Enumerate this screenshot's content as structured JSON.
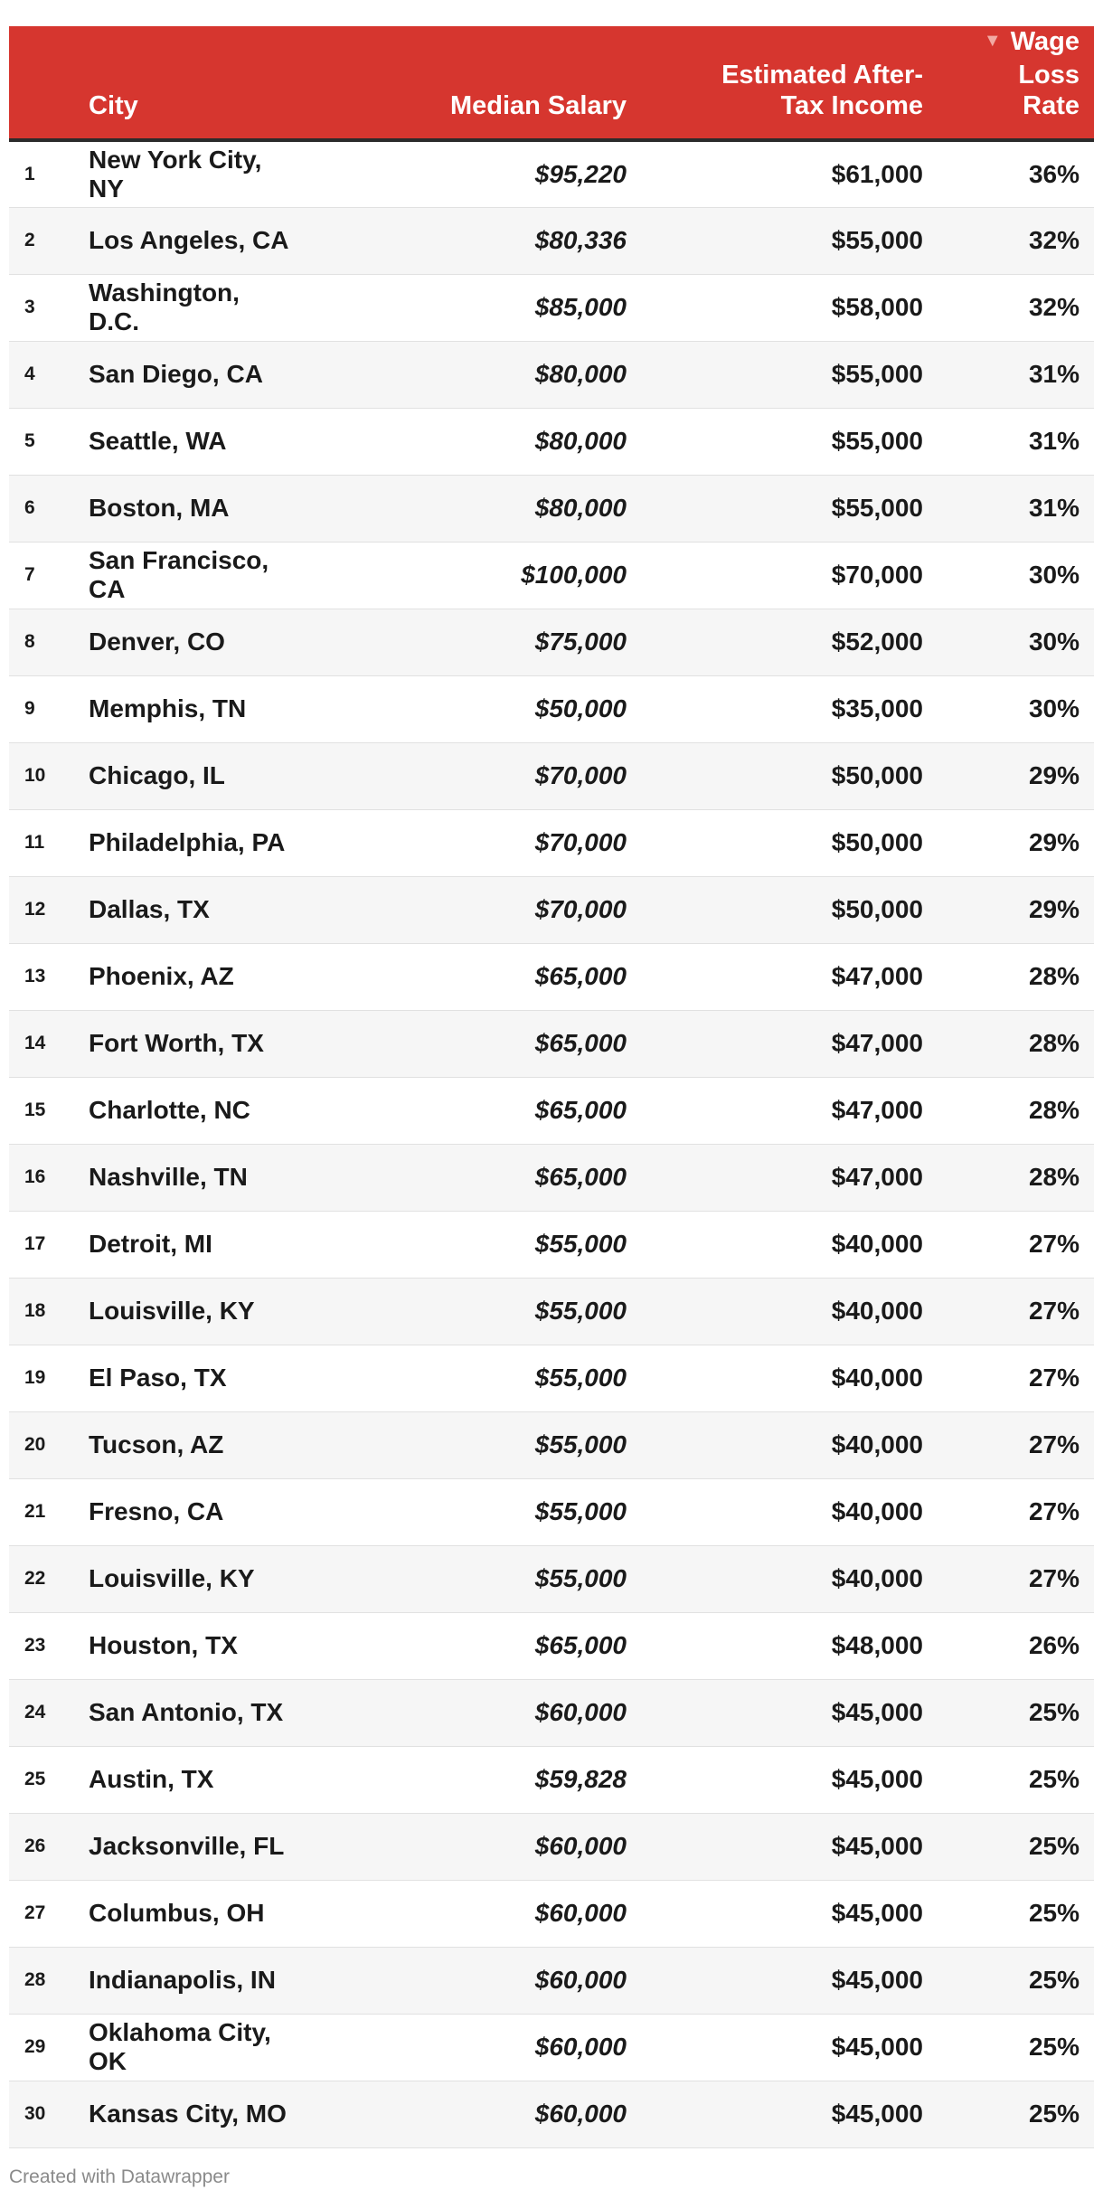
{
  "chart_data": {
    "type": "table",
    "columns": [
      "",
      "City",
      "Median Salary",
      "Estimated After-Tax Income",
      "Wage Loss Rate"
    ],
    "sorted_by": "Wage Loss Rate",
    "rows": [
      {
        "rank": "1",
        "city": "New York City, NY",
        "median_salary": "$95,220",
        "after_tax_income": "$61,000",
        "wage_loss_rate": "36%"
      },
      {
        "rank": "2",
        "city": "Los Angeles, CA",
        "median_salary": "$80,336",
        "after_tax_income": "$55,000",
        "wage_loss_rate": "32%"
      },
      {
        "rank": "3",
        "city": "Washington, D.C.",
        "median_salary": "$85,000",
        "after_tax_income": "$58,000",
        "wage_loss_rate": "32%"
      },
      {
        "rank": "4",
        "city": "San Diego, CA",
        "median_salary": "$80,000",
        "after_tax_income": "$55,000",
        "wage_loss_rate": "31%"
      },
      {
        "rank": "5",
        "city": "Seattle, WA",
        "median_salary": "$80,000",
        "after_tax_income": "$55,000",
        "wage_loss_rate": "31%"
      },
      {
        "rank": "6",
        "city": "Boston, MA",
        "median_salary": "$80,000",
        "after_tax_income": "$55,000",
        "wage_loss_rate": "31%"
      },
      {
        "rank": "7",
        "city": "San Francisco, CA",
        "median_salary": "$100,000",
        "after_tax_income": "$70,000",
        "wage_loss_rate": "30%"
      },
      {
        "rank": "8",
        "city": "Denver, CO",
        "median_salary": "$75,000",
        "after_tax_income": "$52,000",
        "wage_loss_rate": "30%"
      },
      {
        "rank": "9",
        "city": "Memphis, TN",
        "median_salary": "$50,000",
        "after_tax_income": "$35,000",
        "wage_loss_rate": "30%"
      },
      {
        "rank": "10",
        "city": "Chicago, IL",
        "median_salary": "$70,000",
        "after_tax_income": "$50,000",
        "wage_loss_rate": "29%"
      },
      {
        "rank": "11",
        "city": "Philadelphia, PA",
        "median_salary": "$70,000",
        "after_tax_income": "$50,000",
        "wage_loss_rate": "29%"
      },
      {
        "rank": "12",
        "city": "Dallas, TX",
        "median_salary": "$70,000",
        "after_tax_income": "$50,000",
        "wage_loss_rate": "29%"
      },
      {
        "rank": "13",
        "city": "Phoenix, AZ",
        "median_salary": "$65,000",
        "after_tax_income": "$47,000",
        "wage_loss_rate": "28%"
      },
      {
        "rank": "14",
        "city": "Fort Worth, TX",
        "median_salary": "$65,000",
        "after_tax_income": "$47,000",
        "wage_loss_rate": "28%"
      },
      {
        "rank": "15",
        "city": "Charlotte, NC",
        "median_salary": "$65,000",
        "after_tax_income": "$47,000",
        "wage_loss_rate": "28%"
      },
      {
        "rank": "16",
        "city": "Nashville, TN",
        "median_salary": "$65,000",
        "after_tax_income": "$47,000",
        "wage_loss_rate": "28%"
      },
      {
        "rank": "17",
        "city": "Detroit, MI",
        "median_salary": "$55,000",
        "after_tax_income": "$40,000",
        "wage_loss_rate": "27%"
      },
      {
        "rank": "18",
        "city": "Louisville, KY",
        "median_salary": "$55,000",
        "after_tax_income": "$40,000",
        "wage_loss_rate": "27%"
      },
      {
        "rank": "19",
        "city": "El Paso, TX",
        "median_salary": "$55,000",
        "after_tax_income": "$40,000",
        "wage_loss_rate": "27%"
      },
      {
        "rank": "20",
        "city": "Tucson, AZ",
        "median_salary": "$55,000",
        "after_tax_income": "$40,000",
        "wage_loss_rate": "27%"
      },
      {
        "rank": "21",
        "city": "Fresno, CA",
        "median_salary": "$55,000",
        "after_tax_income": "$40,000",
        "wage_loss_rate": "27%"
      },
      {
        "rank": "22",
        "city": "Louisville, KY",
        "median_salary": "$55,000",
        "after_tax_income": "$40,000",
        "wage_loss_rate": "27%"
      },
      {
        "rank": "23",
        "city": "Houston, TX",
        "median_salary": "$65,000",
        "after_tax_income": "$48,000",
        "wage_loss_rate": "26%"
      },
      {
        "rank": "24",
        "city": "San Antonio, TX",
        "median_salary": "$60,000",
        "after_tax_income": "$45,000",
        "wage_loss_rate": "25%"
      },
      {
        "rank": "25",
        "city": "Austin, TX",
        "median_salary": "$59,828",
        "after_tax_income": "$45,000",
        "wage_loss_rate": "25%"
      },
      {
        "rank": "26",
        "city": "Jacksonville, FL",
        "median_salary": "$60,000",
        "after_tax_income": "$45,000",
        "wage_loss_rate": "25%"
      },
      {
        "rank": "27",
        "city": "Columbus, OH",
        "median_salary": "$60,000",
        "after_tax_income": "$45,000",
        "wage_loss_rate": "25%"
      },
      {
        "rank": "28",
        "city": "Indianapolis, IN",
        "median_salary": "$60,000",
        "after_tax_income": "$45,000",
        "wage_loss_rate": "25%"
      },
      {
        "rank": "29",
        "city": "Oklahoma City, OK",
        "median_salary": "$60,000",
        "after_tax_income": "$45,000",
        "wage_loss_rate": "25%"
      },
      {
        "rank": "30",
        "city": "Kansas City, MO",
        "median_salary": "$60,000",
        "after_tax_income": "$45,000",
        "wage_loss_rate": "25%"
      }
    ]
  },
  "header": {
    "city": "City",
    "median_salary": "Median Salary",
    "after_tax_line1": "Estimated After-",
    "after_tax_line2": "Tax Income",
    "rate_line1": "Wage Loss",
    "rate_line2": "Rate",
    "sort_icon": "sort-descending-icon"
  },
  "footer": {
    "credit": "Created with Datawrapper"
  },
  "colors": {
    "header_bg": "#d6362f",
    "header_text": "#ffffff",
    "row_alt": "#f6f6f6"
  }
}
